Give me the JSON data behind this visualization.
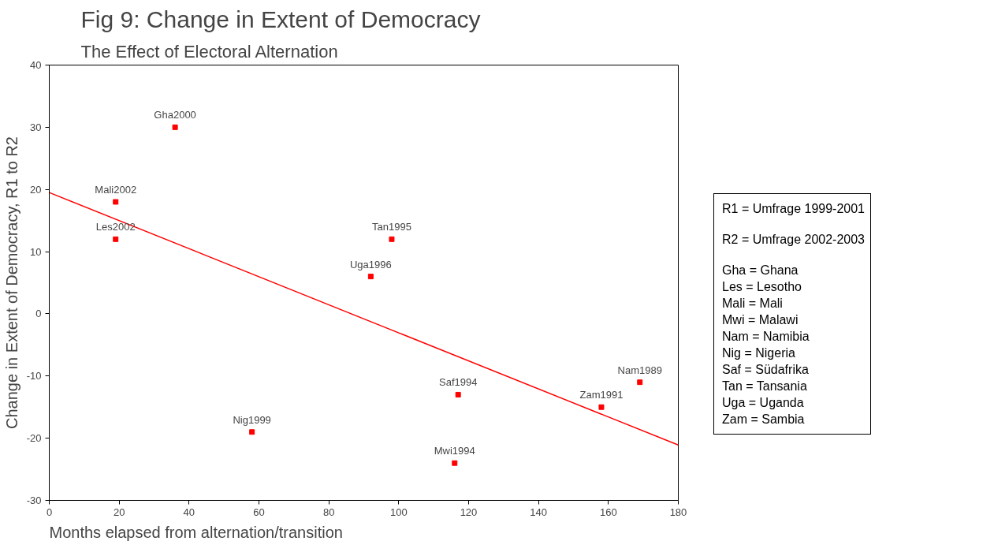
{
  "chart_data": {
    "type": "scatter",
    "title": "Fig 9: Change in Extent of Democracy",
    "subtitle": "The Effect of Electoral Alternation",
    "xlabel": "Months elapsed from alternation/transition",
    "ylabel": "Change in Extent of Democracy, R1 to R2",
    "xlim": [
      0,
      180
    ],
    "xticks": [
      0,
      20,
      40,
      60,
      80,
      100,
      120,
      140,
      160,
      180
    ],
    "ylim": [
      -30,
      40
    ],
    "yticks": [
      -30,
      -20,
      -10,
      0,
      10,
      20,
      30,
      40
    ],
    "grid": false,
    "marker": "square",
    "series": [
      {
        "color": "#ff0000",
        "x": [
          36,
          19,
          19,
          98,
          92,
          58,
          117,
          116,
          158,
          169
        ],
        "values": [
          30,
          18,
          12,
          12,
          6,
          -19,
          -13,
          -24,
          -15,
          -11
        ]
      },
      {
        "type": "line",
        "color": "#ff0000",
        "marker": "none",
        "x": [
          0,
          180
        ],
        "values": [
          19.5,
          -21.1
        ]
      }
    ],
    "annotations": [
      {
        "text": "Gha2000",
        "x": 36,
        "y": 30
      },
      {
        "text": "Mali2002",
        "x": 19,
        "y": 18
      },
      {
        "text": "Les2002",
        "x": 19,
        "y": 12
      },
      {
        "text": "Tan1995",
        "x": 98,
        "y": 12
      },
      {
        "text": "Uga1996",
        "x": 92,
        "y": 6
      },
      {
        "text": "Nig1999",
        "x": 58,
        "y": -19
      },
      {
        "text": "Saf1994",
        "x": 117,
        "y": -13
      },
      {
        "text": "Mwi1994",
        "x": 116,
        "y": -24
      },
      {
        "text": "Zam1991",
        "x": 158,
        "y": -15
      },
      {
        "text": "Nam1989",
        "x": 169,
        "y": -11
      },
      "R1 = Umfrage 1999-2001",
      "R2 = Umfrage 2002-2003",
      "Gha = Ghana",
      "Les = Lesotho",
      "Mali = Mali",
      "Mwi = Malawi",
      "Nam = Namibia",
      "Nig = Nigeria",
      "Saf = Südafrika",
      "Tan = Tansania",
      "Uga = Uganda",
      "Zam = Sambia"
    ]
  }
}
